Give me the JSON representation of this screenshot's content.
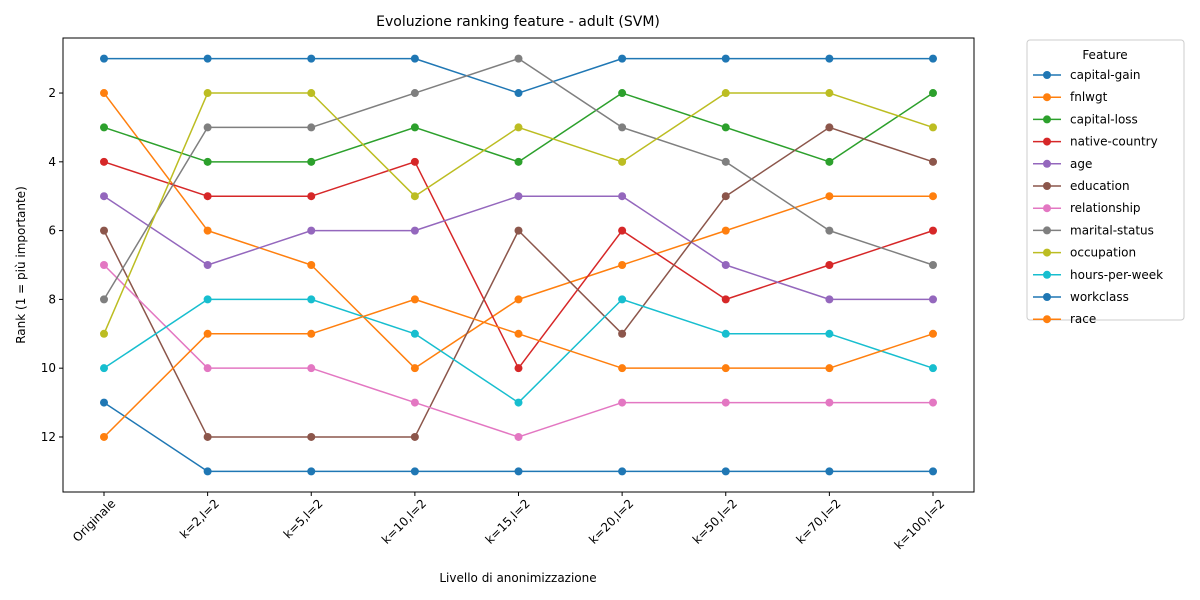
{
  "chart_data": {
    "type": "line",
    "title": "Evoluzione ranking feature - adult (SVM)",
    "xlabel": "Livello di anonimizzazione",
    "ylabel": "Rank (1 = più importante)",
    "categories": [
      "Originale",
      "k=2,l=2",
      "k=5,l=2",
      "k=10,l=2",
      "k=15,l=2",
      "k=20,l=2",
      "k=50,l=2",
      "k=70,l=2",
      "k=100,l=2"
    ],
    "y_ticks": [
      2,
      4,
      6,
      8,
      10,
      12
    ],
    "ylim": [
      13.6,
      0.4
    ],
    "y_inverted": true,
    "grid": false,
    "legend": {
      "title": "Feature",
      "placement": "outside-right"
    },
    "series": [
      {
        "name": "capital-gain",
        "color": "#1f77b4",
        "values": [
          1,
          1,
          1,
          1,
          2,
          1,
          1,
          1,
          1
        ]
      },
      {
        "name": "fnlwgt",
        "color": "#ff7f0e",
        "values": [
          2,
          6,
          7,
          10,
          8,
          7,
          6,
          5,
          5
        ]
      },
      {
        "name": "capital-loss",
        "color": "#2ca02c",
        "values": [
          3,
          4,
          4,
          3,
          4,
          2,
          3,
          4,
          2
        ]
      },
      {
        "name": "native-country",
        "color": "#d62728",
        "values": [
          4,
          5,
          5,
          4,
          10,
          6,
          8,
          7,
          6
        ]
      },
      {
        "name": "age",
        "color": "#9467bd",
        "values": [
          5,
          7,
          6,
          6,
          5,
          5,
          7,
          8,
          8
        ]
      },
      {
        "name": "education",
        "color": "#8c564b",
        "values": [
          6,
          12,
          12,
          12,
          6,
          9,
          5,
          3,
          4
        ]
      },
      {
        "name": "relationship",
        "color": "#e377c2",
        "values": [
          7,
          10,
          10,
          11,
          12,
          11,
          11,
          11,
          11
        ]
      },
      {
        "name": "marital-status",
        "color": "#7f7f7f",
        "values": [
          8,
          3,
          3,
          2,
          1,
          3,
          4,
          6,
          7
        ]
      },
      {
        "name": "occupation",
        "color": "#bcbd22",
        "values": [
          9,
          2,
          2,
          5,
          3,
          4,
          2,
          2,
          3
        ]
      },
      {
        "name": "hours-per-week",
        "color": "#17becf",
        "values": [
          10,
          8,
          8,
          9,
          11,
          8,
          9,
          9,
          10
        ]
      },
      {
        "name": "workclass",
        "color": "#1f77b4",
        "values": [
          11,
          13,
          13,
          13,
          13,
          13,
          13,
          13,
          13
        ]
      },
      {
        "name": "race",
        "color": "#ff7f0e",
        "values": [
          12,
          9,
          9,
          8,
          9,
          10,
          10,
          10,
          9
        ]
      }
    ]
  }
}
